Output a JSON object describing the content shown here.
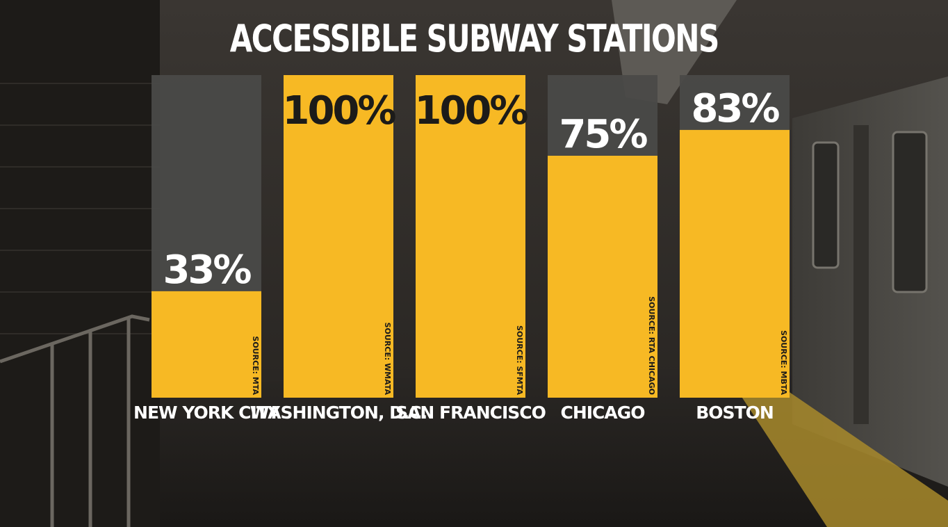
{
  "chart_data": {
    "type": "bar",
    "title": "ACCESSIBLE SUBWAY STATIONS",
    "categories": [
      "NEW YORK CITY",
      "WASHINGTON, D.C.",
      "SAN FRANCISCO",
      "CHICAGO",
      "BOSTON"
    ],
    "values": [
      33,
      100,
      100,
      75,
      83
    ],
    "value_labels": [
      "33%",
      "100%",
      "100%",
      "75%",
      "83%"
    ],
    "sources": [
      "SOURCE: MTA",
      "SOURCE: WMATA",
      "SOURCE: SFMTA",
      "SOURCE: RTA CHICAGO",
      "SOURCE: MBTA"
    ],
    "ylim": [
      0,
      100
    ],
    "grid": false,
    "xlabel": "",
    "ylabel": ""
  },
  "colors": {
    "bar_fill": "#f7b924",
    "bar_track": "#4a4a48",
    "label_on_bar": "#1c1b19",
    "label_on_track": "#ffffff",
    "title": "#ffffff"
  }
}
